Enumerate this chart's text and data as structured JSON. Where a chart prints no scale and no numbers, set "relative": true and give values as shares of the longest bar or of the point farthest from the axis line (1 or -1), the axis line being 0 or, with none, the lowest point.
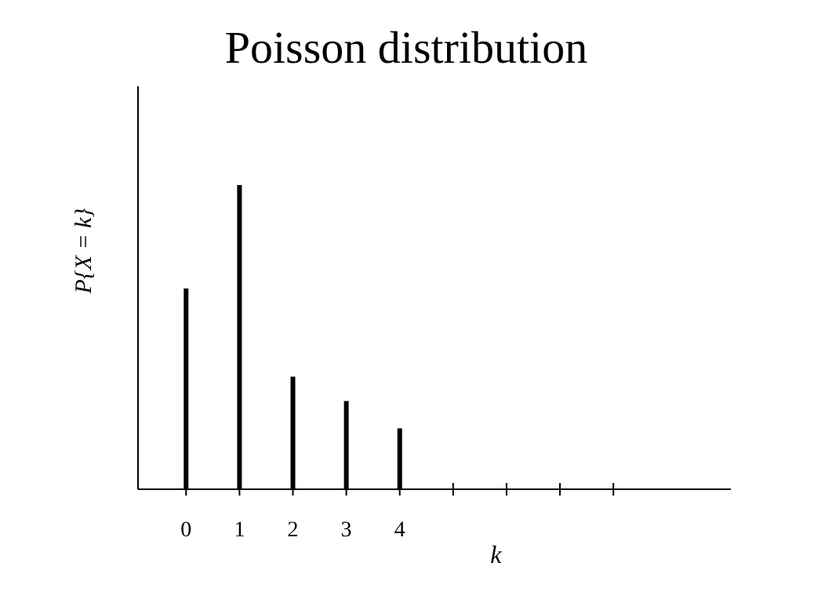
{
  "chart_data": {
    "type": "bar",
    "title": "Poisson distribution",
    "xlabel": "k",
    "ylabel": "P{X = k}",
    "relative": true,
    "color": "#000000",
    "categories": [
      "0",
      "1",
      "2",
      "3",
      "4",
      null,
      null,
      null,
      null
    ],
    "values": [
      0.66,
      1,
      0.37,
      0.29,
      0.2,
      null,
      null,
      null,
      null
    ]
  }
}
